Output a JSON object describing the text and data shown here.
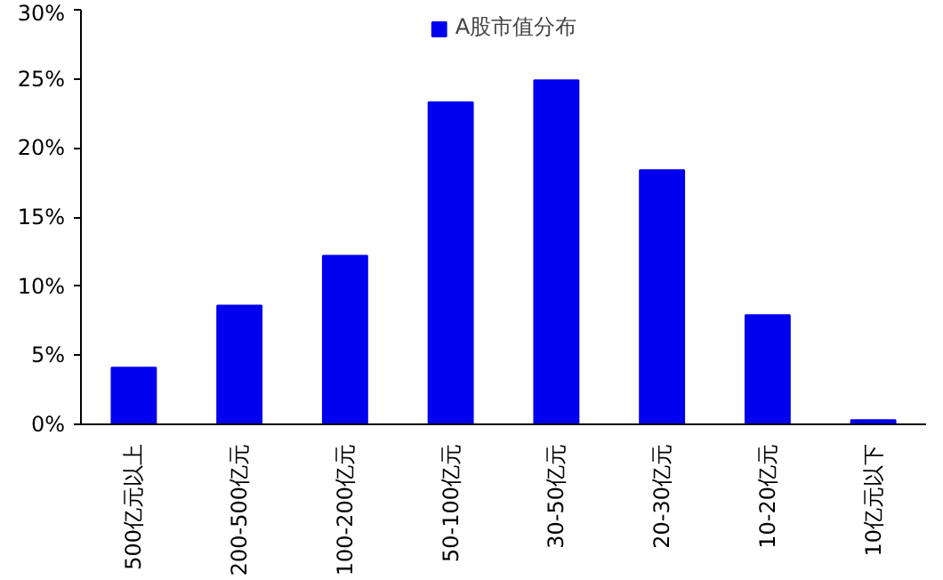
{
  "chart_data": {
    "type": "bar",
    "categories": [
      "500亿元以上",
      "200-500亿元",
      "100-200亿元",
      "50-100亿元",
      "30-50亿元",
      "20-30亿元",
      "10-20亿元",
      "10亿元以下"
    ],
    "series": [
      {
        "name": "A股市值分布",
        "color": "#0000ee",
        "values": [
          4.1,
          8.6,
          12.2,
          23.3,
          24.9,
          18.4,
          7.9,
          0.3
        ]
      }
    ],
    "ylim": [
      0,
      30
    ],
    "yticks": [
      {
        "value": 0,
        "label": "0%"
      },
      {
        "value": 5,
        "label": "5%"
      },
      {
        "value": 10,
        "label": "10%"
      },
      {
        "value": 15,
        "label": "15%"
      },
      {
        "value": 20,
        "label": "20%"
      },
      {
        "value": 25,
        "label": "25%"
      },
      {
        "value": 30,
        "label": "30%"
      }
    ],
    "legend": "top",
    "grid": false
  }
}
